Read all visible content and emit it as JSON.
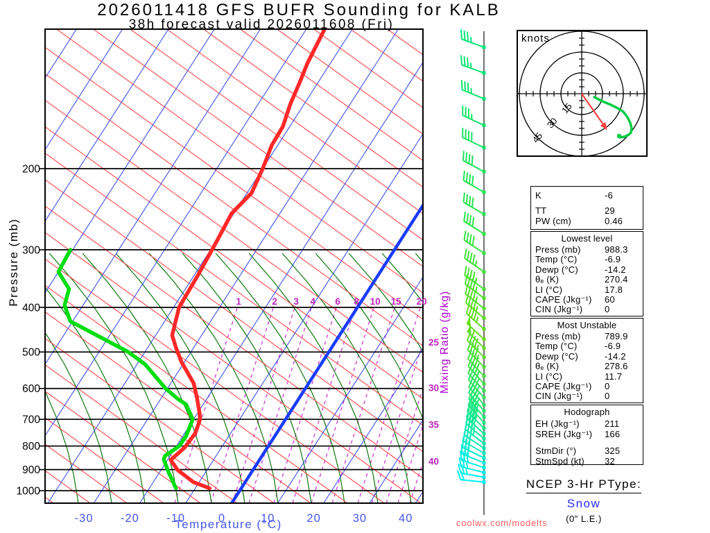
{
  "title": {
    "line1": "2026011418 GFS BUFR Sounding for KALB",
    "line2": "38h forecast valid 2026011608 (Fri)"
  },
  "watermark": "coolwx.com/modelts",
  "axes": {
    "pressure_label": "Pressure (mb)",
    "temperature_label": "Temperature (°C)",
    "mixing_ratio_label": "Mixing Ratio (g/kg)",
    "pressure_ticks": [
      200,
      300,
      400,
      500,
      600,
      700,
      800,
      900,
      1000
    ],
    "temperature_ticks": [
      -30,
      -20,
      -10,
      0,
      10,
      20,
      30,
      40
    ],
    "mixing_ratio_ticks_top": [
      1,
      2,
      3,
      4,
      6,
      8,
      10,
      15,
      20
    ],
    "mixing_ratio_ticks_right": [
      25,
      30,
      35,
      40
    ]
  },
  "hodograph_inset": {
    "unit_label": "knots",
    "ring_labels": [
      15,
      30,
      45
    ]
  },
  "chart_data": {
    "type": "skewt-logp-sounding",
    "pressure_axis_mb": [
      100,
      1050
    ],
    "temperature_axis_c": [
      -40,
      40
    ],
    "isotherm_step_c": 10,
    "freezing_isotherm_c": 0,
    "temperature_profile_p_t": [
      [
        100,
        -46
      ],
      [
        118,
        -45
      ],
      [
        130,
        -44
      ],
      [
        145,
        -43
      ],
      [
        162,
        -41.5
      ],
      [
        178,
        -41.3
      ],
      [
        200,
        -40
      ],
      [
        226,
        -39
      ],
      [
        250,
        -40.5
      ],
      [
        290,
        -39.8
      ],
      [
        340,
        -39.2
      ],
      [
        400,
        -38.8
      ],
      [
        460,
        -36.4
      ],
      [
        490,
        -33.8
      ],
      [
        525,
        -30.7
      ],
      [
        585,
        -25
      ],
      [
        630,
        -22.2
      ],
      [
        680,
        -19.5
      ],
      [
        700,
        -18.6
      ],
      [
        750,
        -17.7
      ],
      [
        806,
        -18
      ],
      [
        858,
        -19.3
      ],
      [
        903,
        -16.3
      ],
      [
        958,
        -11.3
      ],
      [
        988.3,
        -6.9
      ]
    ],
    "dewpoint_profile_p_t": [
      [
        300,
        -70.5
      ],
      [
        335,
        -70
      ],
      [
        365,
        -65.3
      ],
      [
        396,
        -64
      ],
      [
        429,
        -60.5
      ],
      [
        500,
        -43.6
      ],
      [
        532,
        -38.2
      ],
      [
        601,
        -30.3
      ],
      [
        632,
        -26.3
      ],
      [
        650,
        -23.7
      ],
      [
        700,
        -20.2
      ],
      [
        760,
        -19.3
      ],
      [
        800,
        -19.4
      ],
      [
        840,
        -21.1
      ],
      [
        855,
        -20.9
      ],
      [
        915,
        -17.9
      ],
      [
        988.3,
        -14.2
      ]
    ],
    "wind_barbs_p_dir_spd": [
      [
        109,
        290,
        35
      ],
      [
        124,
        290,
        35
      ],
      [
        141,
        292,
        35
      ],
      [
        161,
        295,
        35
      ],
      [
        180,
        295,
        38
      ],
      [
        203,
        298,
        40
      ],
      [
        225,
        300,
        40
      ],
      [
        251,
        300,
        40
      ],
      [
        277,
        302,
        42
      ],
      [
        305,
        303,
        42
      ],
      [
        335,
        305,
        45
      ],
      [
        365,
        305,
        45
      ],
      [
        382,
        307,
        45
      ],
      [
        402,
        308,
        45
      ],
      [
        422,
        310,
        45
      ],
      [
        446,
        312,
        45
      ],
      [
        469,
        313,
        50
      ],
      [
        490,
        315,
        55
      ],
      [
        513,
        315,
        45
      ],
      [
        539,
        316,
        45
      ],
      [
        564,
        317,
        45
      ],
      [
        586,
        318,
        45
      ],
      [
        607,
        318,
        42
      ],
      [
        628,
        319,
        42
      ],
      [
        651,
        320,
        42
      ],
      [
        671,
        320,
        40
      ],
      [
        692,
        320,
        40
      ],
      [
        712,
        318,
        40
      ],
      [
        732,
        315,
        38
      ],
      [
        752,
        312,
        38
      ],
      [
        771,
        310,
        35
      ],
      [
        790,
        307,
        35
      ],
      [
        809,
        304,
        32
      ],
      [
        829,
        300,
        32
      ],
      [
        849,
        296,
        30
      ],
      [
        870,
        292,
        28
      ],
      [
        891,
        288,
        28
      ],
      [
        913,
        284,
        25
      ],
      [
        935,
        280,
        25
      ],
      [
        958,
        276,
        22
      ]
    ],
    "hodograph": {
      "units": "kt",
      "rings_kt": [
        15,
        30,
        45
      ],
      "trace_uv_kt": [
        [
          9,
          -2.5
        ],
        [
          15,
          -5.5
        ],
        [
          21,
          -8
        ],
        [
          26,
          -10.5
        ],
        [
          30,
          -13
        ],
        [
          33,
          -17
        ],
        [
          35,
          -21
        ],
        [
          36,
          -25
        ],
        [
          35.5,
          -28
        ],
        [
          34,
          -29.5
        ],
        [
          31,
          -31
        ],
        [
          27.5,
          -31.5
        ]
      ],
      "marker_uv_kt": [
        27,
        -30.5
      ],
      "storm_motion": {
        "dir_deg": 325,
        "spd_kt": 32
      }
    }
  },
  "panels": {
    "indices": {
      "rows": [
        {
          "label": "K",
          "value": "-6"
        },
        {
          "label": "TT",
          "value": "29"
        },
        {
          "label": "PW (cm)",
          "value": "0.46"
        }
      ]
    },
    "lowest_level": {
      "title": "Lowest level",
      "rows": [
        {
          "label": "Press (mb)",
          "value": "988.3"
        },
        {
          "label": "Temp (°C)",
          "value": "-6.9"
        },
        {
          "label": "Dewp (°C)",
          "value": "-14.2"
        },
        {
          "label": "θₑ (K)",
          "value": "270.4"
        },
        {
          "label": "LI (°C)",
          "value": "17.8"
        },
        {
          "label": "CAPE (Jkg⁻¹)",
          "value": "60"
        },
        {
          "label": "CIN (Jkg⁻¹)",
          "value": "0"
        }
      ]
    },
    "most_unstable": {
      "title": "Most Unstable",
      "rows": [
        {
          "label": "Press (mb)",
          "value": "789.9"
        },
        {
          "label": "Temp (°C)",
          "value": "-6.9"
        },
        {
          "label": "Dewp (°C)",
          "value": "-14.2"
        },
        {
          "label": "θₑ (K)",
          "value": "278.6"
        },
        {
          "label": "LI (°C)",
          "value": "11.7"
        },
        {
          "label": "CAPE (Jkg⁻¹)",
          "value": "0"
        },
        {
          "label": "CIN (Jkg⁻¹)",
          "value": "0"
        }
      ]
    },
    "hodograph_stats": {
      "title": "Hodograph",
      "rows": [
        {
          "label": "EH (Jkg⁻¹)",
          "value": "211"
        },
        {
          "label": "SREH (Jkg⁻¹)",
          "value": "166"
        },
        {
          "label": "StmDir (°)",
          "value": "325"
        },
        {
          "label": "StmSpd (kt)",
          "value": "32"
        }
      ]
    }
  },
  "ptype": {
    "heading": "NCEP 3-Hr PType:",
    "value": "Snow",
    "note": "(0\" L.E.)"
  },
  "colors": {
    "isotherm": "#3c50e6",
    "dry_adiabat": "#ff4848",
    "moist_adiabat": "#0c780c",
    "mixing_ratio": "#cc2acc",
    "mixing_label": "#bb22bb",
    "freezing_line": "#1a3cff",
    "temperature_curve": "#ff2828",
    "dewpoint_curve": "#00dd10",
    "temp_axis_text": "#4455ee",
    "storm_arrow": "#ff4040",
    "hodo_trace": "#00cc44"
  }
}
